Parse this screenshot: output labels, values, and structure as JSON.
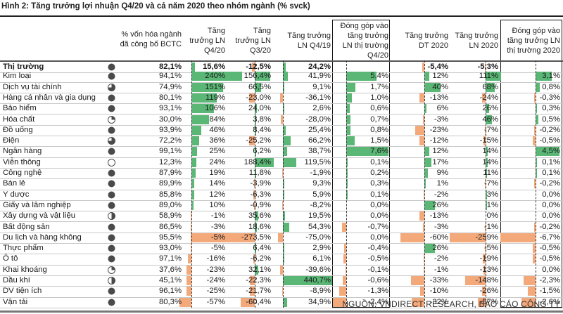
{
  "title": "Hình 2: Tăng trưởng lợi nhuận Q4/20 và cả năm 2020 theo nhóm ngành (% svck)",
  "headers": {
    "cap_share": [
      "% vốn hóa ngành",
      "đã công bố BCTC"
    ],
    "ln_q420": [
      "Tăng",
      "trưởng LN",
      "Q4/20"
    ],
    "ln_q320": [
      "Tăng",
      "trưởng LN",
      "Q3/20"
    ],
    "ln_q419": [
      "Tăng trưởng",
      "LN Q4/19"
    ],
    "contrib_q420": [
      "Đóng góp vào",
      "tăng trưởng",
      "LN thị trường",
      "Q4/20"
    ],
    "dt_2020": [
      "Tăng trưởng",
      "DT 2020"
    ],
    "ln_2020": [
      "Tăng trưởng",
      "LN 2020"
    ],
    "contrib_2020": [
      "Đóng góp vào",
      "tăng trưởng LN",
      "thị trường 2020"
    ]
  },
  "colors": {
    "positive": "#5ab776",
    "negative": "#f4a97b"
  },
  "rows": [
    {
      "name": "Thị trường",
      "harvey": 1.0,
      "cap": "82,1%",
      "q420": "15,6%",
      "q420v": 15.6,
      "q320": "-12,5%",
      "q320v": -12.5,
      "q419": "24,2%",
      "q419v": 24.2,
      "c420": "",
      "c420v": 0,
      "dt": "-5,4%",
      "dtv": -5.4,
      "ln": "-5,3%",
      "lnv": -5.3,
      "c20": "",
      "c20v": 0,
      "bold": true
    },
    {
      "name": "Kim loại",
      "harvey": 1.0,
      "cap": "94,1%",
      "q420": "240%",
      "q420v": 240,
      "q320": "156,4%",
      "q320v": 156.4,
      "q419": "41,9%",
      "q419v": 41.9,
      "c420": "5,4%",
      "c420v": 5.4,
      "dt": "12%",
      "dtv": 12,
      "ln": "111%",
      "lnv": 111,
      "c20": "3,1%",
      "c20v": 3.1
    },
    {
      "name": "Dịch vụ tài chính",
      "harvey": 0.75,
      "cap": "74,9%",
      "q420": "151%",
      "q420v": 151,
      "q320": "66,5%",
      "q320v": 66.5,
      "q419": "9,1%",
      "q419v": 9.1,
      "c420": "1,7%",
      "c420v": 1.7,
      "dt": "40%",
      "dtv": 40,
      "ln": "68%",
      "lnv": 68,
      "c20": "0,8%",
      "c20v": 0.8
    },
    {
      "name": "Hàng cá nhân và gia dụng",
      "harvey": 1.0,
      "cap": "80,1%",
      "q420": "119%",
      "q420v": 119,
      "q320": "-23,0%",
      "q320v": -23.0,
      "q419": "-36,1%",
      "q419v": -36.1,
      "c420": "1,0%",
      "c420v": 1.0,
      "dt": "-13%",
      "dtv": -13,
      "ln": "-24%",
      "lnv": -24,
      "c20": "-0,3%",
      "c20v": -0.3
    },
    {
      "name": "Bảo hiểm",
      "harvey": 1.0,
      "cap": "93,1%",
      "q420": "106%",
      "q420v": 106,
      "q320": "24,0%",
      "q320v": 24.0,
      "q419": "2,6%",
      "q419v": 2.6,
      "c420": "0,6%",
      "c420v": 0.6,
      "dt": "6%",
      "dtv": 6,
      "ln": "26%",
      "lnv": 26,
      "c20": "0,3%",
      "c20v": 0.3
    },
    {
      "name": "Hóa chất",
      "harvey": 0.25,
      "cap": "30,0%",
      "q420": "84%",
      "q420v": 84,
      "q320": "3,8%",
      "q320v": 3.8,
      "q419": "-28,0%",
      "q419v": -28.0,
      "c420": "0,7%",
      "c420v": 0.7,
      "dt": "-3%",
      "dtv": -3,
      "ln": "46%",
      "lnv": 46,
      "c20": "0,5%",
      "c20v": 0.5
    },
    {
      "name": "Đồ uống",
      "harvey": 1.0,
      "cap": "93,9%",
      "q420": "46%",
      "q420v": 46,
      "q320": "8,4%",
      "q320v": 8.4,
      "q419": "25,4%",
      "q419v": 25.4,
      "c420": "0,8%",
      "c420v": 0.8,
      "dt": "-23%",
      "dtv": -23,
      "ln": "-7%",
      "lnv": -7,
      "c20": "-0,2%",
      "c20v": -0.2
    },
    {
      "name": "Điện",
      "harvey": 0.75,
      "cap": "72,2%",
      "q420": "36%",
      "q420v": 36,
      "q320": "-25,2%",
      "q320v": -25.2,
      "q419": "66,2%",
      "q419v": 66.2,
      "c420": "1,5%",
      "c420v": 1.5,
      "dt": "-12%",
      "dtv": -12,
      "ln": "-15%",
      "lnv": -15,
      "c20": "-0,5%",
      "c20v": -0.5
    },
    {
      "name": "Ngân hàng",
      "harvey": 1.0,
      "cap": "99,1%",
      "q420": "25%",
      "q420v": 25,
      "q320": "6,2%",
      "q320v": 6.2,
      "q419": "38,7%",
      "q419v": 38.7,
      "c420": "7,6%",
      "c420v": 7.6,
      "dt": "12%",
      "dtv": 12,
      "ln": "14%",
      "lnv": 14,
      "c20": "4,5%",
      "c20v": 4.5
    },
    {
      "name": "Viễn thông",
      "harvey": 0.0,
      "cap": "12,3%",
      "q420": "24%",
      "q420v": 24,
      "q320": "188,4%",
      "q320v": 188.4,
      "q419": "119,5%",
      "q419v": 119.5,
      "c420": "0,1%",
      "c420v": 0.1,
      "dt": "17%",
      "dtv": 17,
      "ln": "14%",
      "lnv": 14,
      "c20": "0,1%",
      "c20v": 0.1
    },
    {
      "name": "Công nghệ",
      "harvey": 1.0,
      "cap": "87,9%",
      "q420": "19%",
      "q420v": 19,
      "q320": "11,8%",
      "q320v": 11.8,
      "q419": "-1,9%",
      "q419v": -1.9,
      "c420": "0,2%",
      "c420v": 0.2,
      "dt": "9%",
      "dtv": 9,
      "ln": "11%",
      "lnv": 11,
      "c20": "0,1%",
      "c20v": 0.1
    },
    {
      "name": "Bán lẻ",
      "harvey": 1.0,
      "cap": "89,9%",
      "q420": "14%",
      "q420v": 14,
      "q320": "-3,9%",
      "q320v": -3.9,
      "q419": "9,3%",
      "q419v": 9.3,
      "c420": "0,3%",
      "c420v": 0.3,
      "dt": "1%",
      "dtv": 1,
      "ln": "-7%",
      "lnv": -7,
      "c20": "-0,2%",
      "c20v": -0.2
    },
    {
      "name": "Y dược",
      "harvey": 1.0,
      "cap": "85,8%",
      "q420": "12%",
      "q420v": 12,
      "q320": "-6,3%",
      "q320v": -6.3,
      "q419": "5,9%",
      "q419v": 5.9,
      "c420": "0,1%",
      "c420v": 0.1,
      "dt": "-2%",
      "dtv": -2,
      "ln": "3%",
      "lnv": 3,
      "c20": "0,0%",
      "c20v": 0
    },
    {
      "name": "Giấy và lâm nghiệp",
      "harvey": 1.0,
      "cap": "89,0%",
      "q420": "10%",
      "q420v": 10,
      "q320": "-0,9%",
      "q320v": -0.9,
      "q419": "-8,2%",
      "q419v": -8.2,
      "c420": "0,0%",
      "c420v": 0,
      "dt": "26%",
      "dtv": 26,
      "ln": "1%",
      "lnv": 1,
      "c20": "0,0%",
      "c20v": 0
    },
    {
      "name": "Xây dựng và vật liệu",
      "harvey": 0.5,
      "cap": "58,9%",
      "q420": "-1%",
      "q420v": -1,
      "q320": "35,6%",
      "q320v": 35.6,
      "q419": "19,5%",
      "q419v": 19.5,
      "c420": "0,0%",
      "c420v": 0,
      "dt": "-13%",
      "dtv": -13,
      "ln": "0%",
      "lnv": 0,
      "c20": "0,0%",
      "c20v": 0
    },
    {
      "name": "Bất động sản",
      "harvey": 1.0,
      "cap": "86,5%",
      "q420": "-3%",
      "q420v": -3,
      "q320": "18,6%",
      "q320v": 18.6,
      "q419": "54,3%",
      "q419v": 54.3,
      "c420": "-0,7%",
      "c420v": -0.7,
      "dt": "-3%",
      "dtv": -3,
      "ln": "-1%",
      "lnv": -1,
      "c20": "-0,2%",
      "c20v": -0.2
    },
    {
      "name": "Du lịch và hàng không",
      "harvey": 1.0,
      "cap": "95,5%",
      "q420": "-5%",
      "q420v": -5,
      "q320": "-273,5%",
      "q320v": -273.5,
      "q419": "-75,0%",
      "q419v": -75.0,
      "c420": "0,0%",
      "c420v": 0,
      "dt": "-60%",
      "dtv": -60,
      "ln": "-259%",
      "lnv": -259,
      "c20": "-6,7%",
      "c20v": -6.7
    },
    {
      "name": "Thực phẩm",
      "harvey": 1.0,
      "cap": "93,0%",
      "q420": "-5%",
      "q420v": -5,
      "q320": "6,4%",
      "q320v": 6.4,
      "q419": "2,9%",
      "q419v": 2.9,
      "c420": "-0,4%",
      "c420v": -0.4,
      "dt": "26%",
      "dtv": 26,
      "ln": "-5%",
      "lnv": -5,
      "c20": "-0,5%",
      "c20v": -0.5
    },
    {
      "name": "Ô tô",
      "harvey": 1.0,
      "cap": "97,1%",
      "q420": "-16%",
      "q420v": -16,
      "q320": "-6,2%",
      "q320v": -6.2,
      "q419": "6,1%",
      "q419v": 6.1,
      "c420": "-0,5%",
      "c420v": -0.5,
      "dt": "-2%",
      "dtv": -2,
      "ln": "-19%",
      "lnv": -19,
      "c20": "-0,5%",
      "c20v": -0.5
    },
    {
      "name": "Khai khoáng",
      "harvey": 0.25,
      "cap": "37,6%",
      "q420": "-23%",
      "q420v": -23,
      "q320": "32,1%",
      "q320v": 32.1,
      "q419": "-39,6%",
      "q419v": -39.6,
      "c420": "-0,1%",
      "c420v": -0.1,
      "dt": "-1%",
      "dtv": -1,
      "ln": "-13%",
      "lnv": -13,
      "c20": "0,0%",
      "c20v": 0
    },
    {
      "name": "Dầu khí",
      "harvey": 0.5,
      "cap": "45,1%",
      "q420": "-24%",
      "q420v": -24,
      "q320": "-22,3%",
      "q320v": -22.3,
      "q419": "440,7%",
      "q419v": 440.7,
      "c420": "-0,6%",
      "c420v": -0.6,
      "dt": "-33%",
      "dtv": -33,
      "ln": "-148%",
      "lnv": -148,
      "c20": "-2,3%",
      "c20v": -2.3
    },
    {
      "name": "DV tiện ích",
      "harvey": 1.0,
      "cap": "96,1%",
      "q420": "-25%",
      "q420v": -25,
      "q320": "-21,7%",
      "q320v": -21.7,
      "q419": "-8,9%",
      "q419v": -8.9,
      "c420": "-1,3%",
      "c420v": -1.3,
      "dt": "-10%",
      "dtv": -10,
      "ln": "-26%",
      "lnv": -26,
      "c20": "-1,5%",
      "c20v": -1.5
    },
    {
      "name": "Vận tải",
      "harvey": 1.0,
      "cap": "80,3%",
      "q420": "-57%",
      "q420v": -57,
      "q320": "-60,4%",
      "q320v": -60.4,
      "q419": "34,9%",
      "q419v": 34.9,
      "c420": "-2,4%",
      "c420v": -2.4,
      "dt": "-32%",
      "dtv": -32,
      "ln": "-57%",
      "lnv": -57,
      "c20": "-2,6%",
      "c20v": -2.6
    }
  ],
  "source": "NGUỒN: VNDIRECT RESEARCH, BÁO CÁO CÔNG TY"
}
